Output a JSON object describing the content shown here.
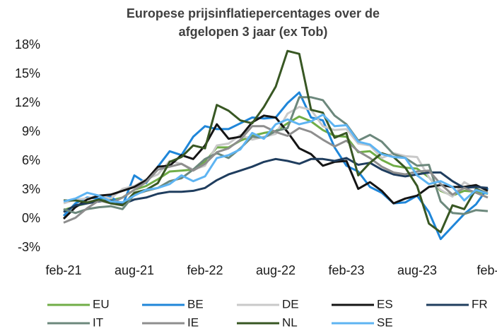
{
  "chart_data": {
    "type": "line",
    "title": [
      "Europese prijsinflatiepercentages over de",
      "afgelopen 3 jaar (ex Tob)"
    ],
    "categories": [
      "feb-21",
      null,
      null,
      null,
      null,
      null,
      "aug-21",
      null,
      null,
      null,
      null,
      null,
      "feb-22",
      null,
      null,
      null,
      null,
      null,
      "aug-22",
      null,
      null,
      null,
      null,
      null,
      "feb-23",
      null,
      null,
      null,
      null,
      null,
      "aug-23",
      null,
      null,
      null,
      null,
      null,
      "feb-"
    ],
    "ylim": [
      -3,
      18
    ],
    "yticks": [
      {
        "value": -3,
        "label": "-3%"
      },
      {
        "value": 0,
        "label": "0%"
      },
      {
        "value": 3,
        "label": "3%"
      },
      {
        "value": 6,
        "label": "6%"
      },
      {
        "value": 9,
        "label": "9%"
      },
      {
        "value": 12,
        "label": "12%"
      },
      {
        "value": 15,
        "label": "15%"
      },
      {
        "value": 18,
        "label": "18%"
      }
    ],
    "grid": false,
    "legend": "bottom",
    "series": [
      {
        "name": "EU",
        "color": "#70ad47",
        "values": [
          0.9,
          1.3,
          1.6,
          2.0,
          1.9,
          2.2,
          3.0,
          3.4,
          4.1,
          4.9,
          5.0,
          5.1,
          5.9,
          7.4,
          7.4,
          8.1,
          8.6,
          8.9,
          9.1,
          9.9,
          10.6,
          10.1,
          9.2,
          8.6,
          8.5,
          6.9,
          7.0,
          6.1,
          5.5,
          5.3,
          5.2,
          4.3,
          2.9,
          2.4,
          2.9,
          2.8,
          2.6
        ]
      },
      {
        "name": "BE",
        "color": "#1f86d9",
        "values": [
          0.3,
          1.6,
          2.2,
          2.1,
          2.3,
          1.4,
          4.5,
          3.7,
          5.4,
          7.0,
          6.6,
          8.5,
          9.6,
          9.3,
          9.3,
          9.9,
          10.5,
          10.4,
          10.5,
          12.0,
          13.1,
          10.5,
          10.2,
          7.4,
          5.5,
          4.9,
          3.3,
          2.7,
          1.6,
          1.7,
          2.4,
          0.7,
          -2.1,
          -0.8,
          0.5,
          1.5,
          3.2
        ]
      },
      {
        "name": "DE",
        "color": "#c9c9c9",
        "values": [
          1.6,
          2.0,
          2.1,
          2.4,
          2.1,
          3.1,
          3.4,
          4.1,
          4.6,
          6.0,
          5.7,
          5.1,
          5.5,
          7.6,
          7.8,
          8.7,
          8.2,
          8.5,
          8.8,
          10.9,
          11.6,
          11.3,
          9.6,
          9.2,
          9.3,
          7.8,
          7.6,
          6.3,
          6.8,
          6.5,
          6.4,
          4.3,
          3.0,
          2.3,
          3.8,
          3.1,
          2.7
        ]
      },
      {
        "name": "ES",
        "color": "#141414",
        "values": [
          0.0,
          1.2,
          2.0,
          2.4,
          2.5,
          2.9,
          3.3,
          4.0,
          5.4,
          5.5,
          6.6,
          6.2,
          7.6,
          9.8,
          8.3,
          8.5,
          10.0,
          10.7,
          10.5,
          9.0,
          7.3,
          6.7,
          5.5,
          5.9,
          6.0,
          3.1,
          3.8,
          2.9,
          1.6,
          2.1,
          2.4,
          3.3,
          3.5,
          3.3,
          3.3,
          3.5,
          2.9
        ]
      },
      {
        "name": "FR",
        "color": "#1f3d5e",
        "values": [
          0.7,
          1.4,
          1.6,
          1.8,
          1.9,
          1.5,
          2.0,
          2.2,
          2.6,
          2.8,
          2.8,
          2.9,
          3.2,
          4.0,
          4.6,
          5.0,
          5.4,
          5.9,
          6.2,
          6.0,
          5.7,
          6.2,
          6.2,
          6.0,
          6.3,
          5.6,
          5.8,
          5.1,
          4.6,
          4.4,
          4.6,
          4.8,
          4.8,
          3.9,
          3.2,
          3.3,
          3.2
        ]
      },
      {
        "name": "IT",
        "color": "#6c887c",
        "values": [
          1.0,
          0.6,
          1.0,
          1.2,
          1.3,
          1.0,
          2.5,
          2.9,
          3.2,
          3.9,
          4.2,
          5.1,
          6.2,
          6.8,
          6.3,
          7.3,
          8.5,
          8.4,
          9.1,
          9.4,
          12.6,
          12.6,
          12.3,
          10.7,
          9.8,
          8.1,
          8.7,
          8.0,
          6.7,
          6.3,
          5.5,
          5.6,
          1.8,
          0.6,
          0.5,
          0.9,
          0.8
        ]
      },
      {
        "name": "IE",
        "color": "#8e8e8e",
        "values": [
          -0.4,
          0.1,
          1.1,
          1.9,
          1.6,
          2.2,
          3.0,
          3.8,
          5.1,
          5.4,
          5.7,
          5.0,
          5.7,
          6.9,
          7.3,
          8.2,
          9.6,
          9.6,
          9.0,
          8.6,
          9.4,
          9.0,
          8.2,
          7.5,
          8.1,
          7.0,
          6.3,
          5.4,
          4.8,
          4.6,
          4.9,
          5.0,
          3.6,
          2.5,
          3.2,
          2.7,
          2.2
        ]
      },
      {
        "name": "NL",
        "color": "#385723",
        "values": [
          1.9,
          1.9,
          1.7,
          2.0,
          1.6,
          1.4,
          2.7,
          3.0,
          3.7,
          5.9,
          6.4,
          7.6,
          7.3,
          11.8,
          11.2,
          10.2,
          9.9,
          11.6,
          13.7,
          17.4,
          17.1,
          11.3,
          11.0,
          8.4,
          8.9,
          4.5,
          5.8,
          6.8,
          6.4,
          5.3,
          3.4,
          -0.5,
          -1.4,
          1.4,
          1.0,
          3.1,
          2.6
        ]
      },
      {
        "name": "SE",
        "color": "#5eb4f2",
        "values": [
          1.8,
          2.1,
          2.7,
          2.4,
          1.8,
          1.7,
          2.4,
          3.0,
          3.2,
          3.6,
          4.5,
          3.9,
          4.4,
          6.3,
          6.6,
          7.2,
          8.9,
          8.3,
          9.8,
          10.3,
          9.8,
          10.1,
          10.8,
          9.6,
          9.7,
          8.0,
          7.7,
          6.7,
          6.4,
          6.3,
          4.5,
          3.6,
          3.9,
          3.3,
          1.9,
          3.0,
          2.6
        ]
      }
    ]
  }
}
